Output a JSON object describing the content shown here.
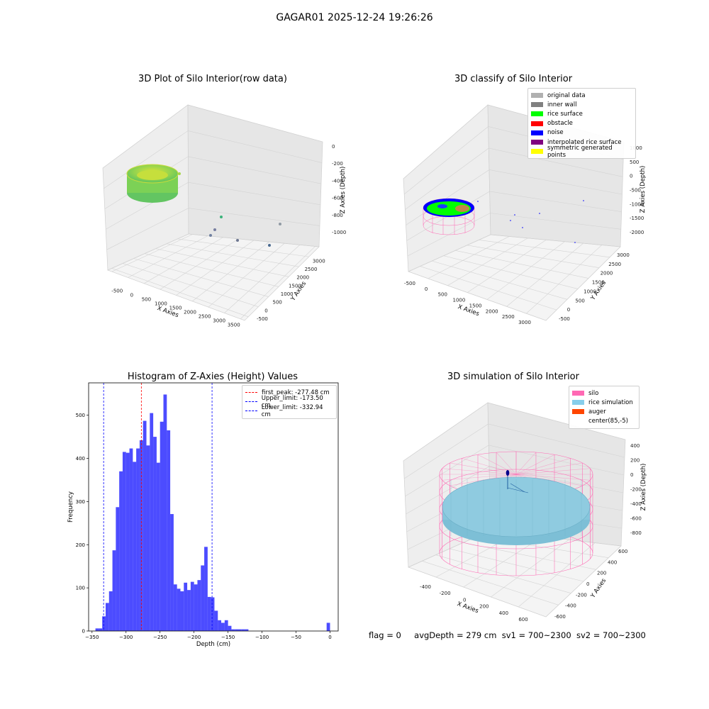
{
  "suptitle": "GAGAR01 2025-12-24 19:26:26",
  "panels": {
    "raw": {
      "title": "3D Plot of Silo Interior(row data)",
      "xlabel": "X Axies",
      "ylabel": "Y Axies",
      "zlabel": "Z Axies (Depth)",
      "xticks": [
        "-500",
        "0",
        "500",
        "1000",
        "1500",
        "2000",
        "2500",
        "3000",
        "3500"
      ],
      "yticks": [
        "-500",
        "0",
        "500",
        "1000",
        "1500",
        "2000",
        "2500",
        "3000"
      ],
      "zticks": [
        "0",
        "-200",
        "-400",
        "-600",
        "-800",
        "-1000"
      ]
    },
    "classify": {
      "title": "3D classify of Silo Interior",
      "xlabel": "X Axies",
      "ylabel": "Y Axies",
      "zlabel": "Z Axies (Depth)",
      "xticks": [
        "-500",
        "0",
        "500",
        "1000",
        "1500",
        "2000",
        "2500",
        "3000"
      ],
      "yticks": [
        "-500",
        "0",
        "500",
        "1000",
        "1500",
        "2000",
        "2500",
        "3000"
      ],
      "zticks": [
        "1000",
        "500",
        "0",
        "-500",
        "-1000",
        "-1500",
        "-2000"
      ],
      "legend": [
        {
          "label": "original data",
          "color": "#b0b0b0"
        },
        {
          "label": "inner wall",
          "color": "#808080"
        },
        {
          "label": "rice surface",
          "color": "#00ff00"
        },
        {
          "label": "obstacle",
          "color": "#ff0000"
        },
        {
          "label": "noise",
          "color": "#0000ff"
        },
        {
          "label": "interpolated rice surface",
          "color": "#800080"
        },
        {
          "label": "symmetric generated points",
          "color": "#ffff00"
        }
      ]
    },
    "simulation": {
      "title": "3D simulation of Silo Interior",
      "xlabel": "X Axies",
      "ylabel": "Y Axies",
      "zlabel": "Z Axies (Depth)",
      "xticks": [
        "-400",
        "-200",
        "0",
        "200",
        "400",
        "600"
      ],
      "yticks": [
        "-600",
        "-400",
        "-200",
        "0",
        "200",
        "400",
        "600"
      ],
      "zticks": [
        "400",
        "200",
        "0",
        "-200",
        "-400",
        "-600",
        "-800"
      ],
      "legend": [
        {
          "label": "silo",
          "color": "#ff69b4"
        },
        {
          "label": "rice simulation",
          "color": "#87ceeb"
        },
        {
          "label": "auger",
          "color": "#ff4500"
        },
        {
          "label": "center(85,-5)",
          "color": "#ffffff"
        }
      ]
    }
  },
  "status": {
    "flag": "flag = 0",
    "avgDepth": "avgDepth = 279 cm",
    "sv1": "sv1 = 700~2300",
    "sv2": "sv2 = 700~2300"
  },
  "chart_data": {
    "type": "bar",
    "title": "Histogram of Z-Axies (Height) Values",
    "xlabel": "Depth (cm)",
    "ylabel": "Frequency",
    "xlim": [
      -355,
      12
    ],
    "ylim": [
      0,
      575
    ],
    "xticks": [
      -350,
      -300,
      -250,
      -200,
      -150,
      -100,
      -50,
      0
    ],
    "yticks": [
      0,
      100,
      200,
      300,
      400,
      500
    ],
    "bin_width": 5,
    "bins": [
      {
        "x0": -345,
        "v": 6
      },
      {
        "x0": -340,
        "v": 6
      },
      {
        "x0": -335,
        "v": 34
      },
      {
        "x0": -330,
        "v": 65
      },
      {
        "x0": -325,
        "v": 92
      },
      {
        "x0": -320,
        "v": 187
      },
      {
        "x0": -315,
        "v": 287
      },
      {
        "x0": -310,
        "v": 370
      },
      {
        "x0": -305,
        "v": 415
      },
      {
        "x0": -300,
        "v": 413
      },
      {
        "x0": -295,
        "v": 423
      },
      {
        "x0": -290,
        "v": 392
      },
      {
        "x0": -285,
        "v": 423
      },
      {
        "x0": -280,
        "v": 442
      },
      {
        "x0": -275,
        "v": 487
      },
      {
        "x0": -270,
        "v": 430
      },
      {
        "x0": -265,
        "v": 505
      },
      {
        "x0": -260,
        "v": 450
      },
      {
        "x0": -255,
        "v": 390
      },
      {
        "x0": -250,
        "v": 485
      },
      {
        "x0": -245,
        "v": 548
      },
      {
        "x0": -240,
        "v": 465
      },
      {
        "x0": -235,
        "v": 271
      },
      {
        "x0": -230,
        "v": 108
      },
      {
        "x0": -225,
        "v": 98
      },
      {
        "x0": -220,
        "v": 92
      },
      {
        "x0": -215,
        "v": 112
      },
      {
        "x0": -210,
        "v": 95
      },
      {
        "x0": -205,
        "v": 114
      },
      {
        "x0": -200,
        "v": 108
      },
      {
        "x0": -195,
        "v": 118
      },
      {
        "x0": -190,
        "v": 152
      },
      {
        "x0": -185,
        "v": 195
      },
      {
        "x0": -180,
        "v": 79
      },
      {
        "x0": -175,
        "v": 78
      },
      {
        "x0": -170,
        "v": 47
      },
      {
        "x0": -165,
        "v": 25
      },
      {
        "x0": -160,
        "v": 19
      },
      {
        "x0": -155,
        "v": 25
      },
      {
        "x0": -150,
        "v": 12
      },
      {
        "x0": -145,
        "v": 4
      },
      {
        "x0": -140,
        "v": 4
      },
      {
        "x0": -135,
        "v": 4
      },
      {
        "x0": -130,
        "v": 4
      },
      {
        "x0": -125,
        "v": 4
      },
      {
        "x0": -5,
        "v": 19
      }
    ],
    "bar_color": "#0000ff",
    "bar_opacity": 0.7,
    "vlines": [
      {
        "x": -277.48,
        "label": "first_peak: -277.48 cm",
        "color": "#ff0000"
      },
      {
        "x": -173.5,
        "label": "Upper_limit: -173.50 cm",
        "color": "#0000ff"
      },
      {
        "x": -332.94,
        "label": "Lower_limit: -332.94 cm",
        "color": "#0000ff"
      }
    ],
    "legend_position": "upper right"
  }
}
